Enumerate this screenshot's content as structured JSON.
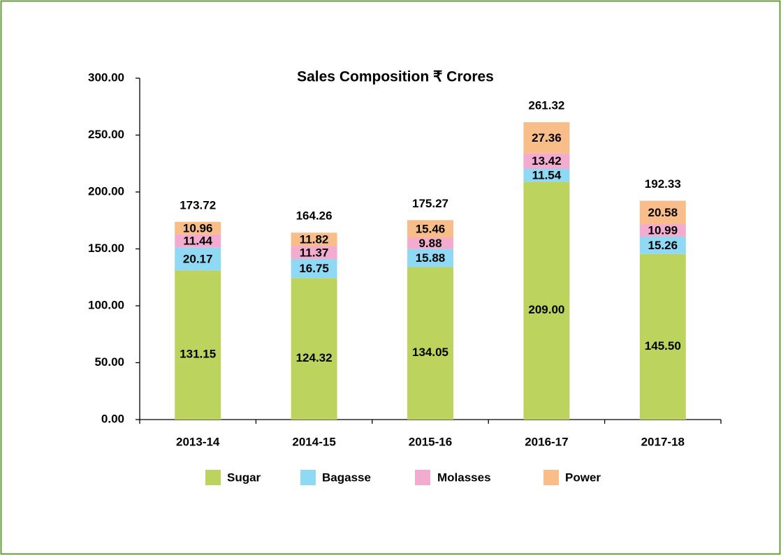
{
  "chart_data": {
    "type": "stacked_bar",
    "title": "Sales Composition ₹ Crores",
    "categories": [
      "2013-14",
      "2014-15",
      "2015-16",
      "2016-17",
      "2017-18"
    ],
    "series": [
      {
        "name": "Sugar",
        "color": "#bcd45e",
        "values": [
          131.15,
          124.32,
          134.05,
          209.0,
          145.5
        ],
        "value_labels": [
          "131.15",
          "124.32",
          "134.05",
          "209.00",
          "145.50"
        ]
      },
      {
        "name": "Bagasse",
        "color": "#8fd9f4",
        "values": [
          20.17,
          16.75,
          15.88,
          11.54,
          15.26
        ],
        "value_labels": [
          "20.17",
          "16.75",
          "15.88",
          "11.54",
          "15.26"
        ]
      },
      {
        "name": "Molasses",
        "color": "#f4abd0",
        "values": [
          11.44,
          11.37,
          9.88,
          13.42,
          10.99
        ],
        "value_labels": [
          "11.44",
          "11.37",
          "9.88",
          "13.42",
          "10.99"
        ]
      },
      {
        "name": "Power",
        "color": "#f9bd8a",
        "values": [
          10.96,
          11.82,
          15.46,
          27.36,
          20.58
        ],
        "value_labels": [
          "10.96",
          "11.82",
          "15.46",
          "27.36",
          "20.58"
        ]
      }
    ],
    "totals": [
      173.72,
      164.26,
      175.27,
      261.32,
      192.33
    ],
    "ylim": [
      0,
      300
    ],
    "yticks": [
      {
        "value": 0,
        "label": "0.00"
      },
      {
        "value": 50,
        "label": "50.00"
      },
      {
        "value": 100,
        "label": "100.00"
      },
      {
        "value": 150,
        "label": "150.00"
      },
      {
        "value": 200,
        "label": "200.00"
      },
      {
        "value": 250,
        "label": "250.00"
      },
      {
        "value": 300,
        "label": "300.00"
      }
    ],
    "legend": "bottom"
  }
}
